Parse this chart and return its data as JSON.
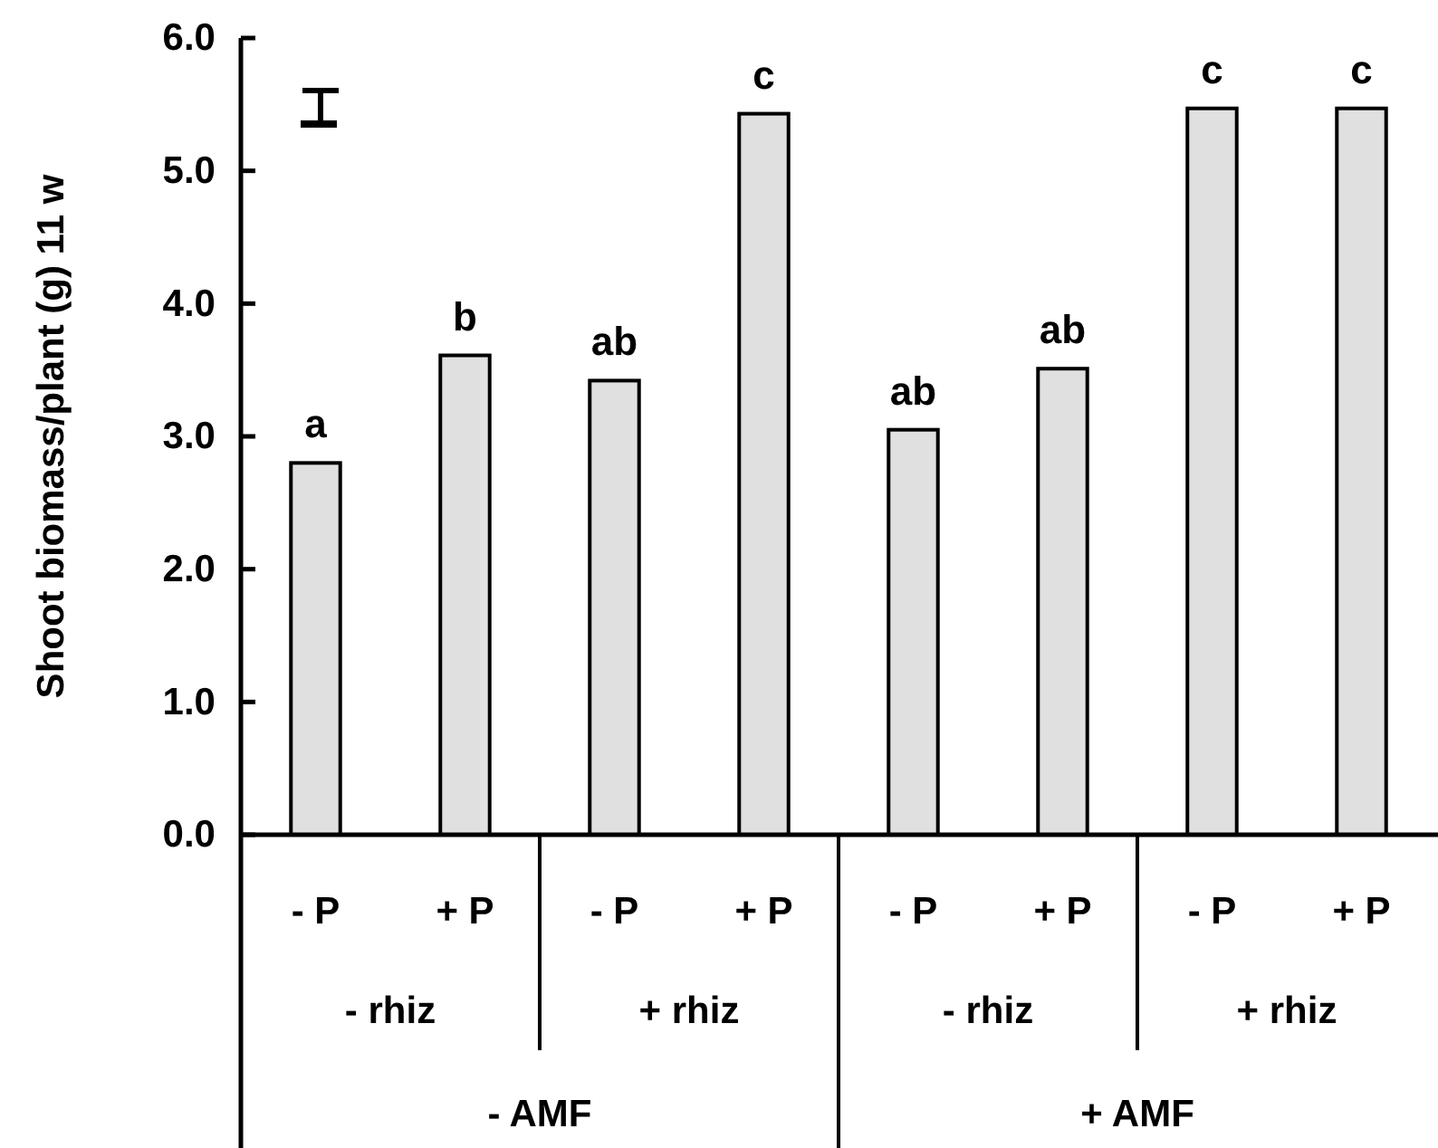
{
  "chart_data": {
    "type": "bar",
    "ylabel": "Shoot biomass/plant (g) 11 w",
    "categories": [
      "- P",
      "+ P",
      "- P",
      "+ P",
      "- P",
      "+ P",
      "- P",
      "+ P"
    ],
    "values": [
      2.8,
      3.61,
      3.42,
      5.43,
      3.05,
      3.51,
      5.47,
      5.47
    ],
    "color": "#e0e0e0",
    "ylim": [
      0,
      6
    ],
    "yticks": [
      {
        "value": 0,
        "label": "0.0"
      },
      {
        "value": 1,
        "label": "1.0"
      },
      {
        "value": 2,
        "label": "2.0"
      },
      {
        "value": 3,
        "label": "3.0"
      },
      {
        "value": 4,
        "label": "4.0"
      },
      {
        "value": 5,
        "label": "5.0"
      },
      {
        "value": 6,
        "label": "6.0"
      }
    ],
    "annotations": [
      "a",
      "b",
      "ab",
      "c",
      "ab",
      "ab",
      "c",
      "c",
      "- rhiz",
      "+ rhiz",
      "- rhiz",
      "+ rhiz",
      "- AMF",
      "+ AMF"
    ]
  }
}
